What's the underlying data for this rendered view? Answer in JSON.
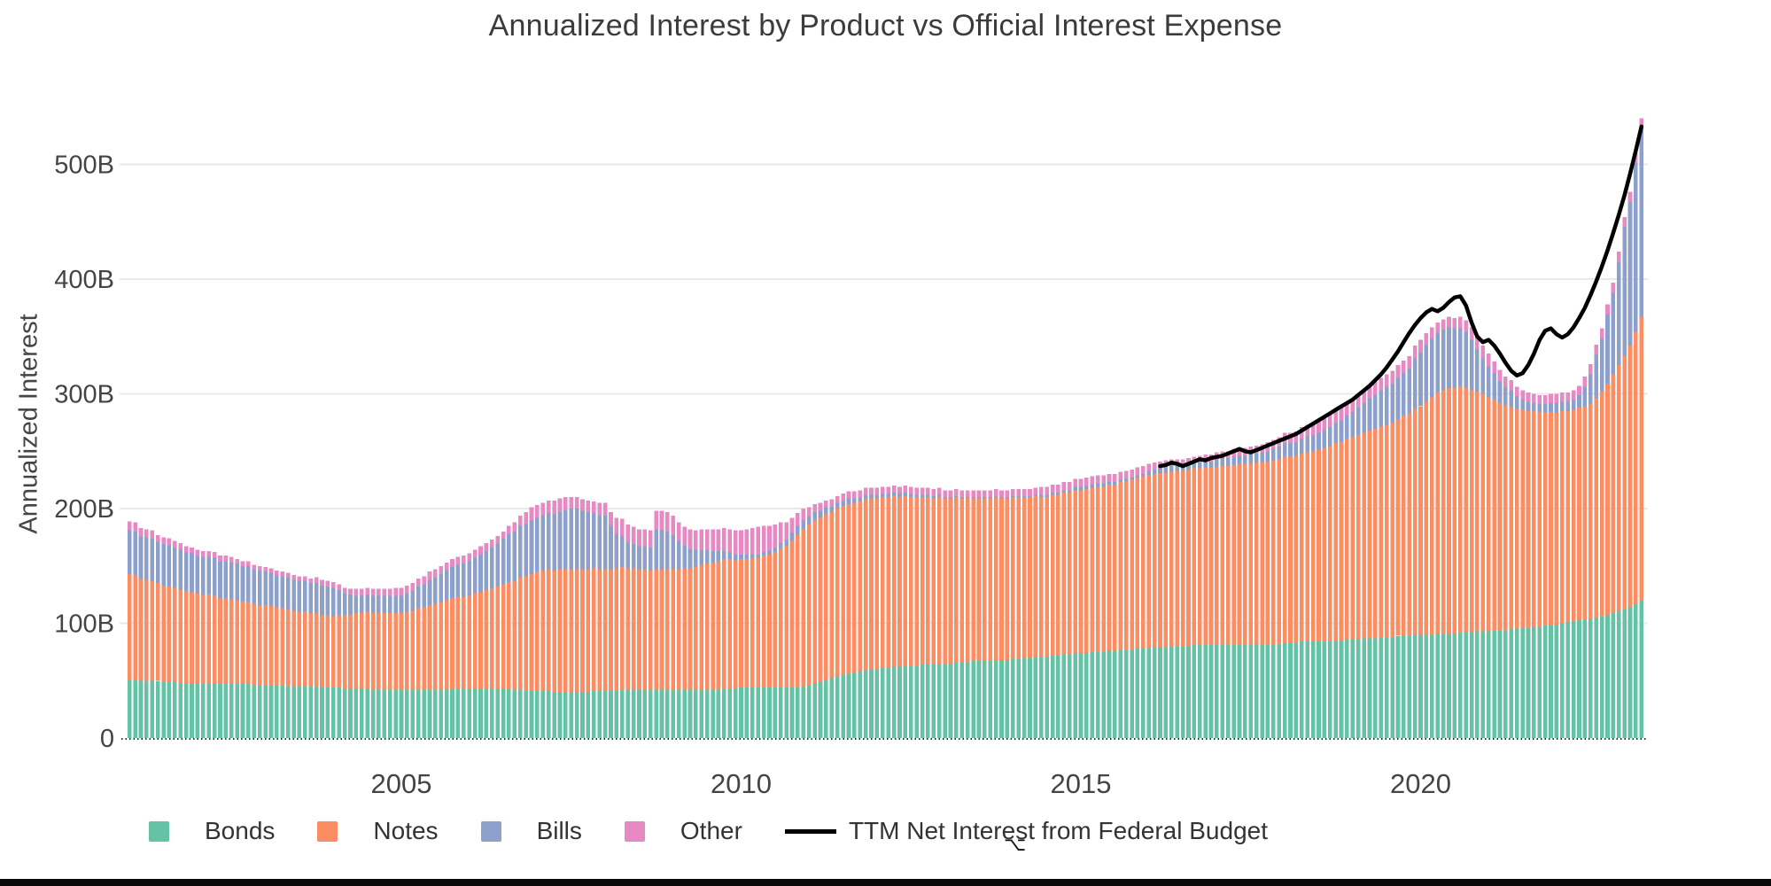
{
  "title": "Annualized Interest by Product vs Official Interest Expense",
  "y_axis_title": "Annualized Interest",
  "legend": {
    "bonds": "Bonds",
    "notes": "Notes",
    "bills": "Bills",
    "other": "Other",
    "line": "TTM Net Interest from Federal Budget"
  },
  "colors": {
    "bonds": "#66c2a5",
    "notes": "#fc8d62",
    "bills": "#8da0cb",
    "other": "#e78ac3",
    "line": "#000000",
    "grid": "#e9e9e9",
    "tick_text": "#444444",
    "baseline": "#333333"
  },
  "chart_data": {
    "type": "bar",
    "subtype": "stacked-monthly-bars-with-line-overlay",
    "title": "Annualized Interest by Product vs Official Interest Expense",
    "xlabel": "",
    "ylabel": "Annualized Interest",
    "ylim": [
      0,
      560
    ],
    "grid": "horizontal",
    "legend_position": "bottom",
    "yticks": [
      {
        "value": 0,
        "label": "0"
      },
      {
        "value": 100,
        "label": "100B"
      },
      {
        "value": 200,
        "label": "200B"
      },
      {
        "value": 300,
        "label": "300B"
      },
      {
        "value": 400,
        "label": "400B"
      },
      {
        "value": 500,
        "label": "500B"
      }
    ],
    "xticks": [
      {
        "year": 2005,
        "label": "2005"
      },
      {
        "year": 2010,
        "label": "2010"
      },
      {
        "year": 2015,
        "label": "2015"
      },
      {
        "year": 2020,
        "label": "2020"
      }
    ],
    "x_start_month": "2001-01",
    "x_end_month": "2023-04",
    "units": "billions USD, annualized",
    "series": [
      {
        "name": "Bonds",
        "values": [
          51,
          51,
          50,
          50,
          50,
          50,
          49,
          49,
          49,
          48,
          48,
          48,
          48,
          48,
          48,
          48,
          47,
          47,
          47,
          47,
          47,
          47,
          46,
          46,
          46,
          46,
          46,
          46,
          45,
          45,
          45,
          45,
          45,
          45,
          44,
          44,
          44,
          44,
          43,
          43,
          43,
          43,
          43,
          42,
          42,
          42,
          42,
          42,
          42,
          42,
          42,
          42,
          42,
          42,
          42,
          42,
          42,
          43,
          43,
          43,
          43,
          43,
          43,
          43,
          43,
          43,
          43,
          43,
          42,
          42,
          41,
          41,
          41,
          41,
          41,
          40,
          40,
          40,
          40,
          40,
          40,
          40,
          41,
          41,
          41,
          41,
          41,
          42,
          42,
          42,
          42,
          42,
          42,
          42,
          42,
          42,
          42,
          42,
          42,
          42,
          42,
          42,
          42,
          42,
          42,
          43,
          43,
          43,
          44,
          44,
          44,
          44,
          44,
          44,
          44,
          44,
          44,
          44,
          44,
          45,
          46,
          48,
          49,
          51,
          52,
          54,
          55,
          56,
          57,
          58,
          59,
          60,
          60,
          61,
          61,
          62,
          62,
          63,
          63,
          63,
          64,
          64,
          64,
          65,
          65,
          65,
          66,
          66,
          66,
          67,
          67,
          67,
          67,
          68,
          68,
          68,
          69,
          69,
          70,
          70,
          71,
          71,
          71,
          72,
          72,
          73,
          73,
          74,
          74,
          74,
          75,
          75,
          75,
          76,
          76,
          77,
          77,
          77,
          78,
          78,
          78,
          79,
          79,
          79,
          80,
          80,
          80,
          80,
          81,
          81,
          81,
          81,
          81,
          81,
          81,
          82,
          82,
          82,
          82,
          82,
          82,
          82,
          82,
          82,
          83,
          83,
          83,
          84,
          84,
          84,
          84,
          84,
          84,
          85,
          85,
          86,
          86,
          86,
          87,
          87,
          87,
          88,
          88,
          88,
          89,
          89,
          89,
          90,
          90,
          90,
          90,
          91,
          91,
          91,
          91,
          92,
          92,
          92,
          93,
          93,
          93,
          94,
          94,
          94,
          95,
          95,
          96,
          96,
          97,
          97,
          98,
          98,
          99,
          100,
          101,
          102,
          103,
          103,
          104,
          105,
          106,
          107,
          109,
          111,
          112,
          114,
          117,
          120
        ]
      },
      {
        "name": "Notes",
        "values": [
          92,
          91,
          89,
          88,
          87,
          85,
          84,
          83,
          82,
          81,
          80,
          79,
          78,
          77,
          77,
          76,
          75,
          75,
          74,
          73,
          72,
          72,
          71,
          70,
          70,
          69,
          68,
          67,
          67,
          66,
          65,
          65,
          64,
          64,
          63,
          63,
          62,
          63,
          64,
          65,
          66,
          66,
          67,
          67,
          67,
          67,
          67,
          67,
          67,
          68,
          69,
          71,
          72,
          74,
          75,
          76,
          78,
          79,
          80,
          80,
          81,
          83,
          84,
          86,
          87,
          89,
          91,
          93,
          95,
          98,
          100,
          102,
          104,
          105,
          106,
          106,
          107,
          107,
          107,
          107,
          107,
          107,
          107,
          106,
          106,
          106,
          107,
          107,
          106,
          106,
          105,
          105,
          104,
          105,
          105,
          105,
          105,
          105,
          106,
          106,
          107,
          109,
          110,
          111,
          112,
          113,
          113,
          112,
          112,
          112,
          113,
          113,
          115,
          116,
          118,
          121,
          123,
          128,
          133,
          137,
          140,
          142,
          143,
          144,
          145,
          146,
          147,
          148,
          148,
          148,
          149,
          149,
          149,
          149,
          149,
          149,
          148,
          148,
          147,
          147,
          146,
          146,
          145,
          145,
          144,
          144,
          144,
          143,
          143,
          142,
          142,
          142,
          142,
          142,
          141,
          141,
          141,
          141,
          140,
          140,
          140,
          139,
          139,
          140,
          140,
          141,
          141,
          142,
          142,
          143,
          143,
          144,
          144,
          145,
          145,
          146,
          147,
          148,
          149,
          150,
          151,
          151,
          152,
          152,
          152,
          153,
          153,
          154,
          154,
          154,
          155,
          155,
          155,
          156,
          156,
          156,
          157,
          157,
          157,
          158,
          158,
          159,
          160,
          161,
          162,
          162,
          163,
          164,
          165,
          166,
          167,
          169,
          170,
          172,
          173,
          175,
          176,
          178,
          179,
          181,
          182,
          184,
          185,
          187,
          189,
          192,
          194,
          197,
          199,
          203,
          207,
          210,
          212,
          214,
          214,
          214,
          213,
          211,
          209,
          207,
          204,
          201,
          198,
          196,
          194,
          192,
          190,
          189,
          188,
          187,
          186,
          186,
          185,
          185,
          184,
          184,
          185,
          186,
          187,
          191,
          196,
          202,
          208,
          214,
          221,
          228,
          237,
          247
        ]
      },
      {
        "name": "Bills",
        "values": [
          38,
          38,
          37,
          37,
          37,
          36,
          36,
          36,
          35,
          35,
          34,
          34,
          33,
          33,
          33,
          33,
          32,
          32,
          32,
          32,
          31,
          31,
          30,
          30,
          29,
          29,
          28,
          28,
          28,
          27,
          27,
          27,
          26,
          26,
          26,
          25,
          25,
          22,
          19,
          17,
          15,
          15,
          15,
          15,
          15,
          15,
          15,
          15,
          15,
          16,
          17,
          19,
          20,
          22,
          23,
          25,
          26,
          27,
          28,
          29,
          30,
          31,
          33,
          34,
          36,
          38,
          40,
          42,
          43,
          45,
          46,
          47,
          47,
          48,
          49,
          49,
          50,
          52,
          53,
          53,
          51,
          50,
          48,
          47,
          47,
          38,
          30,
          27,
          23,
          21,
          20,
          20,
          20,
          35,
          34,
          33,
          30,
          25,
          20,
          17,
          15,
          13,
          12,
          10,
          9,
          7,
          6,
          5,
          4,
          4,
          3,
          3,
          3,
          3,
          4,
          5,
          6,
          7,
          8,
          8,
          7,
          7,
          6,
          6,
          5,
          5,
          5,
          5,
          4,
          4,
          4,
          3,
          3,
          3,
          3,
          3,
          3,
          3,
          3,
          2,
          2,
          2,
          2,
          2,
          1,
          1,
          1,
          1,
          1,
          1,
          1,
          1,
          1,
          1,
          1,
          1,
          1,
          1,
          1,
          1,
          1,
          2,
          2,
          2,
          2,
          2,
          2,
          3,
          3,
          3,
          3,
          3,
          3,
          2,
          2,
          2,
          2,
          2,
          2,
          2,
          4,
          4,
          4,
          5,
          5,
          4,
          4,
          4,
          4,
          5,
          5,
          5,
          7,
          7,
          7,
          7,
          7,
          7,
          8,
          8,
          9,
          9,
          10,
          11,
          12,
          12,
          12,
          13,
          14,
          14,
          15,
          16,
          17,
          18,
          19,
          20,
          22,
          24,
          26,
          28,
          30,
          31,
          33,
          34,
          36,
          37,
          39,
          44,
          47,
          50,
          51,
          52,
          53,
          53,
          52,
          51,
          49,
          44,
          37,
          31,
          27,
          23,
          19,
          16,
          14,
          11,
          9,
          8,
          7,
          7,
          7,
          8,
          8,
          8,
          8,
          9,
          11,
          17,
          26,
          38,
          46,
          60,
          71,
          90,
          112,
          125,
          147,
          165
        ]
      },
      {
        "name": "Other",
        "values": [
          8,
          8,
          7,
          7,
          7,
          6,
          6,
          6,
          6,
          6,
          5,
          5,
          5,
          5,
          5,
          5,
          5,
          5,
          5,
          4,
          4,
          4,
          4,
          4,
          4,
          4,
          4,
          4,
          4,
          4,
          4,
          4,
          4,
          5,
          5,
          5,
          5,
          5,
          5,
          5,
          6,
          6,
          6,
          6,
          6,
          6,
          6,
          7,
          7,
          7,
          7,
          7,
          7,
          7,
          7,
          7,
          7,
          7,
          7,
          7,
          7,
          7,
          7,
          7,
          7,
          6,
          6,
          7,
          8,
          9,
          10,
          11,
          11,
          11,
          11,
          12,
          12,
          11,
          10,
          10,
          10,
          10,
          10,
          11,
          11,
          12,
          14,
          15,
          15,
          15,
          15,
          15,
          15,
          16,
          17,
          17,
          17,
          16,
          16,
          17,
          17,
          18,
          18,
          19,
          19,
          20,
          20,
          21,
          21,
          22,
          23,
          24,
          23,
          22,
          20,
          18,
          15,
          13,
          11,
          10,
          8,
          7,
          7,
          6,
          6,
          6,
          6,
          6,
          6,
          6,
          6,
          6,
          6,
          6,
          6,
          6,
          6,
          6,
          6,
          6,
          6,
          6,
          6,
          6,
          6,
          6,
          6,
          6,
          6,
          6,
          6,
          6,
          6,
          6,
          6,
          6,
          6,
          6,
          6,
          6,
          6,
          7,
          7,
          7,
          7,
          7,
          7,
          7,
          7,
          7,
          7,
          7,
          7,
          7,
          7,
          7,
          7,
          7,
          7,
          7,
          6,
          6,
          6,
          6,
          6,
          6,
          6,
          6,
          6,
          6,
          6,
          6,
          6,
          6,
          6,
          7,
          7,
          7,
          7,
          7,
          7,
          8,
          8,
          8,
          9,
          9,
          9,
          10,
          10,
          10,
          10,
          11,
          11,
          11,
          11,
          12,
          12,
          12,
          12,
          12,
          12,
          11,
          11,
          11,
          11,
          11,
          11,
          11,
          11,
          10,
          10,
          9,
          9,
          9,
          9,
          10,
          10,
          11,
          11,
          11,
          11,
          10,
          10,
          9,
          9,
          8,
          8,
          8,
          8,
          8,
          8,
          8,
          8,
          8,
          8,
          8,
          8,
          9,
          9,
          9,
          9,
          9,
          9,
          9,
          9,
          9,
          9,
          8
        ]
      }
    ],
    "line": {
      "name": "TTM Net Interest from Federal Budget",
      "start_month": "2016-03",
      "start_index": 182,
      "values": [
        237,
        238,
        240,
        239,
        237,
        239,
        241,
        243,
        242,
        244,
        245,
        246,
        248,
        250,
        252,
        250,
        249,
        251,
        253,
        255,
        257,
        259,
        261,
        263,
        265,
        268,
        271,
        274,
        277,
        280,
        283,
        286,
        289,
        292,
        295,
        299,
        303,
        307,
        312,
        317,
        323,
        330,
        337,
        345,
        353,
        360,
        366,
        371,
        374,
        372,
        375,
        380,
        384,
        385,
        377,
        362,
        350,
        345,
        347,
        342,
        335,
        327,
        320,
        316,
        318,
        325,
        335,
        347,
        355,
        357,
        352,
        349,
        352,
        358,
        366,
        375,
        386,
        398,
        411,
        425,
        440,
        456,
        473,
        492,
        512,
        533
      ]
    }
  }
}
